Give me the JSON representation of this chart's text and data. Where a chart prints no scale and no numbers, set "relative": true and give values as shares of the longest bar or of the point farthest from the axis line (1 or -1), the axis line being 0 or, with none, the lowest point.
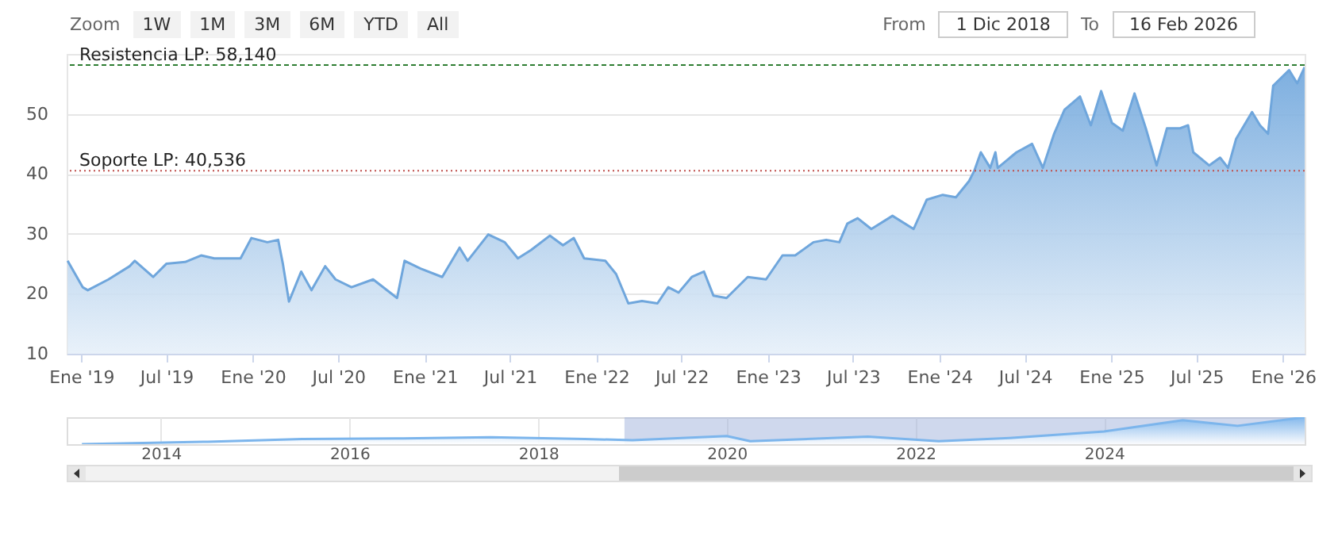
{
  "chart_data": [
    {
      "type": "area",
      "annotations": [
        "Zoom",
        "1W",
        "1M",
        "3M",
        "6M",
        "YTD",
        "All",
        "From",
        "1 Dic 2018",
        "To",
        "16 Feb 2026"
      ],
      "x": [
        "2018-12-03",
        "2019-01-04",
        "2019-01-15",
        "2019-02-28",
        "2019-04-14",
        "2019-04-25",
        "2019-06-03",
        "2019-07-01",
        "2019-08-10",
        "2019-09-13",
        "2019-10-11",
        "2019-12-06",
        "2019-12-29",
        "2020-02-01",
        "2020-02-24",
        "2020-03-05",
        "2020-03-18",
        "2020-04-13",
        "2020-05-05",
        "2020-06-03",
        "2020-06-25",
        "2020-07-29",
        "2020-09-13",
        "2020-11-03",
        "2020-11-19",
        "2020-12-23",
        "2021-02-07",
        "2021-03-16",
        "2021-04-02",
        "2021-05-16",
        "2021-06-20",
        "2021-07-18",
        "2021-08-15",
        "2021-09-24",
        "2021-10-22",
        "2021-11-14",
        "2021-12-06",
        "2022-01-20",
        "2022-02-12",
        "2022-03-10",
        "2022-04-08",
        "2022-05-11",
        "2022-06-03",
        "2022-06-25",
        "2022-07-23",
        "2022-08-18",
        "2022-09-07",
        "2022-10-05",
        "2022-11-19",
        "2022-12-28",
        "2023-02-01",
        "2023-02-28",
        "2023-04-08",
        "2023-05-05",
        "2023-06-02",
        "2023-06-19",
        "2023-07-11",
        "2023-08-09",
        "2023-09-23",
        "2023-11-07",
        "2023-12-05",
        "2024-01-08",
        "2024-02-05",
        "2024-03-04",
        "2024-03-15",
        "2024-03-29",
        "2024-04-18",
        "2024-04-29",
        "2024-05-04",
        "2024-06-13",
        "2024-07-16",
        "2024-08-08",
        "2024-09-01",
        "2024-09-23",
        "2024-10-26",
        "2024-11-18",
        "2024-12-10",
        "2025-01-02",
        "2025-01-25",
        "2025-02-19",
        "2025-03-15",
        "2025-04-07",
        "2025-04-29",
        "2025-05-27",
        "2025-06-13",
        "2025-06-24",
        "2025-07-28",
        "2025-08-20",
        "2025-09-06",
        "2025-09-23",
        "2025-10-27",
        "2025-11-13",
        "2025-11-30",
        "2025-12-11",
        "2026-01-14",
        "2026-01-31",
        "2026-02-16"
      ],
      "series": [
        {
          "color": "#6fa6dc",
          "values": [
            25.5,
            21.1,
            20.6,
            22.4,
            24.6,
            25.5,
            22.8,
            25,
            25.3,
            26.4,
            25.9,
            25.9,
            29.3,
            28.6,
            29,
            25,
            18.7,
            23.7,
            20.6,
            24.6,
            22.4,
            21.1,
            22.4,
            19.3,
            25.5,
            24.2,
            22.8,
            27.7,
            25.5,
            29.9,
            28.6,
            25.9,
            27.3,
            29.7,
            28.1,
            29.3,
            25.9,
            25.5,
            23.3,
            18.4,
            18.8,
            18.4,
            21.1,
            20.2,
            22.8,
            23.7,
            19.7,
            19.3,
            22.8,
            22.4,
            26.4,
            26.4,
            28.6,
            29,
            28.6,
            31.7,
            32.6,
            30.8,
            33,
            30.8,
            35.7,
            36.5,
            36.1,
            38.8,
            40.5,
            43.6,
            41,
            43.6,
            41,
            43.6,
            45,
            41,
            46.7,
            50.7,
            52.9,
            48.1,
            53.8,
            48.5,
            47.2,
            53.4,
            47.6,
            41.4,
            47.6,
            47.6,
            48.1,
            43.6,
            41.4,
            42.7,
            41,
            45.8,
            50.3,
            48.1,
            46.7,
            54.7,
            57.3,
            55.1,
            57.8
          ]
        }
      ],
      "xlim": [
        "2018-12-01",
        "2026-02-16"
      ],
      "xticks": [
        {
          "value": "2019-01-01",
          "label": "Ene '19"
        },
        {
          "value": "2019-07-01",
          "label": "Jul '19"
        },
        {
          "value": "2020-01-01",
          "label": "Ene '20"
        },
        {
          "value": "2020-07-01",
          "label": "Jul '20"
        },
        {
          "value": "2021-01-01",
          "label": "Ene '21"
        },
        {
          "value": "2021-07-01",
          "label": "Jul '21"
        },
        {
          "value": "2022-01-01",
          "label": "Ene '22"
        },
        {
          "value": "2022-07-01",
          "label": "Jul '22"
        },
        {
          "value": "2023-01-01",
          "label": "Ene '23"
        },
        {
          "value": "2023-07-01",
          "label": "Jul '23"
        },
        {
          "value": "2024-01-01",
          "label": "Ene '24"
        },
        {
          "value": "2024-07-01",
          "label": "Jul '24"
        },
        {
          "value": "2025-01-01",
          "label": "Ene '25"
        },
        {
          "value": "2025-07-01",
          "label": "Jul '25"
        },
        {
          "value": "2026-01-01",
          "label": "Ene '26"
        }
      ],
      "ylim": [
        10,
        60
      ],
      "yticks": [
        10,
        20,
        30,
        40,
        50
      ],
      "grid": "y",
      "ref_lines": [
        {
          "axis": "y",
          "value": 58.14,
          "label": "Resistencia LP: 58,140",
          "color": "#2e7d32",
          "line_style": "dashed"
        },
        {
          "axis": "y",
          "value": 40.536,
          "label": "Soporte LP: 40,536",
          "color": "#c0504d",
          "line_style": "dotted"
        }
      ]
    },
    {
      "type": "area",
      "relative": true,
      "x": [
        "2013-03-01",
        "2014-07-01",
        "2015-07-01",
        "2016-07-01",
        "2017-07-01",
        "2018-07-01",
        "2019-01-01",
        "2020-01-01",
        "2020-04-01",
        "2021-07-01",
        "2022-04-01",
        "2023-01-01",
        "2024-01-01",
        "2024-11-01",
        "2025-06-01",
        "2026-02-16"
      ],
      "series": [
        {
          "color": "#7cb5ec",
          "values": [
            0,
            0.09,
            0.19,
            0.21,
            0.26,
            0.19,
            0.15,
            0.3,
            0.11,
            0.28,
            0.11,
            0.23,
            0.47,
            0.89,
            0.68,
            1
          ]
        }
      ],
      "xlim": [
        "2013-01-01",
        "2026-02-16"
      ],
      "xticks": [
        {
          "value": "2014-01-01",
          "label": "2014"
        },
        {
          "value": "2016-01-01",
          "label": "2016"
        },
        {
          "value": "2018-01-01",
          "label": "2018"
        },
        {
          "value": "2020-01-01",
          "label": "2020"
        },
        {
          "value": "2022-01-01",
          "label": "2022"
        },
        {
          "value": "2024-01-01",
          "label": "2024"
        }
      ],
      "grid": "x",
      "bands": [
        {
          "axis": "x",
          "from": "2018-12-01",
          "to": "2026-02-16",
          "color": "#9fb1dc"
        }
      ]
    }
  ]
}
